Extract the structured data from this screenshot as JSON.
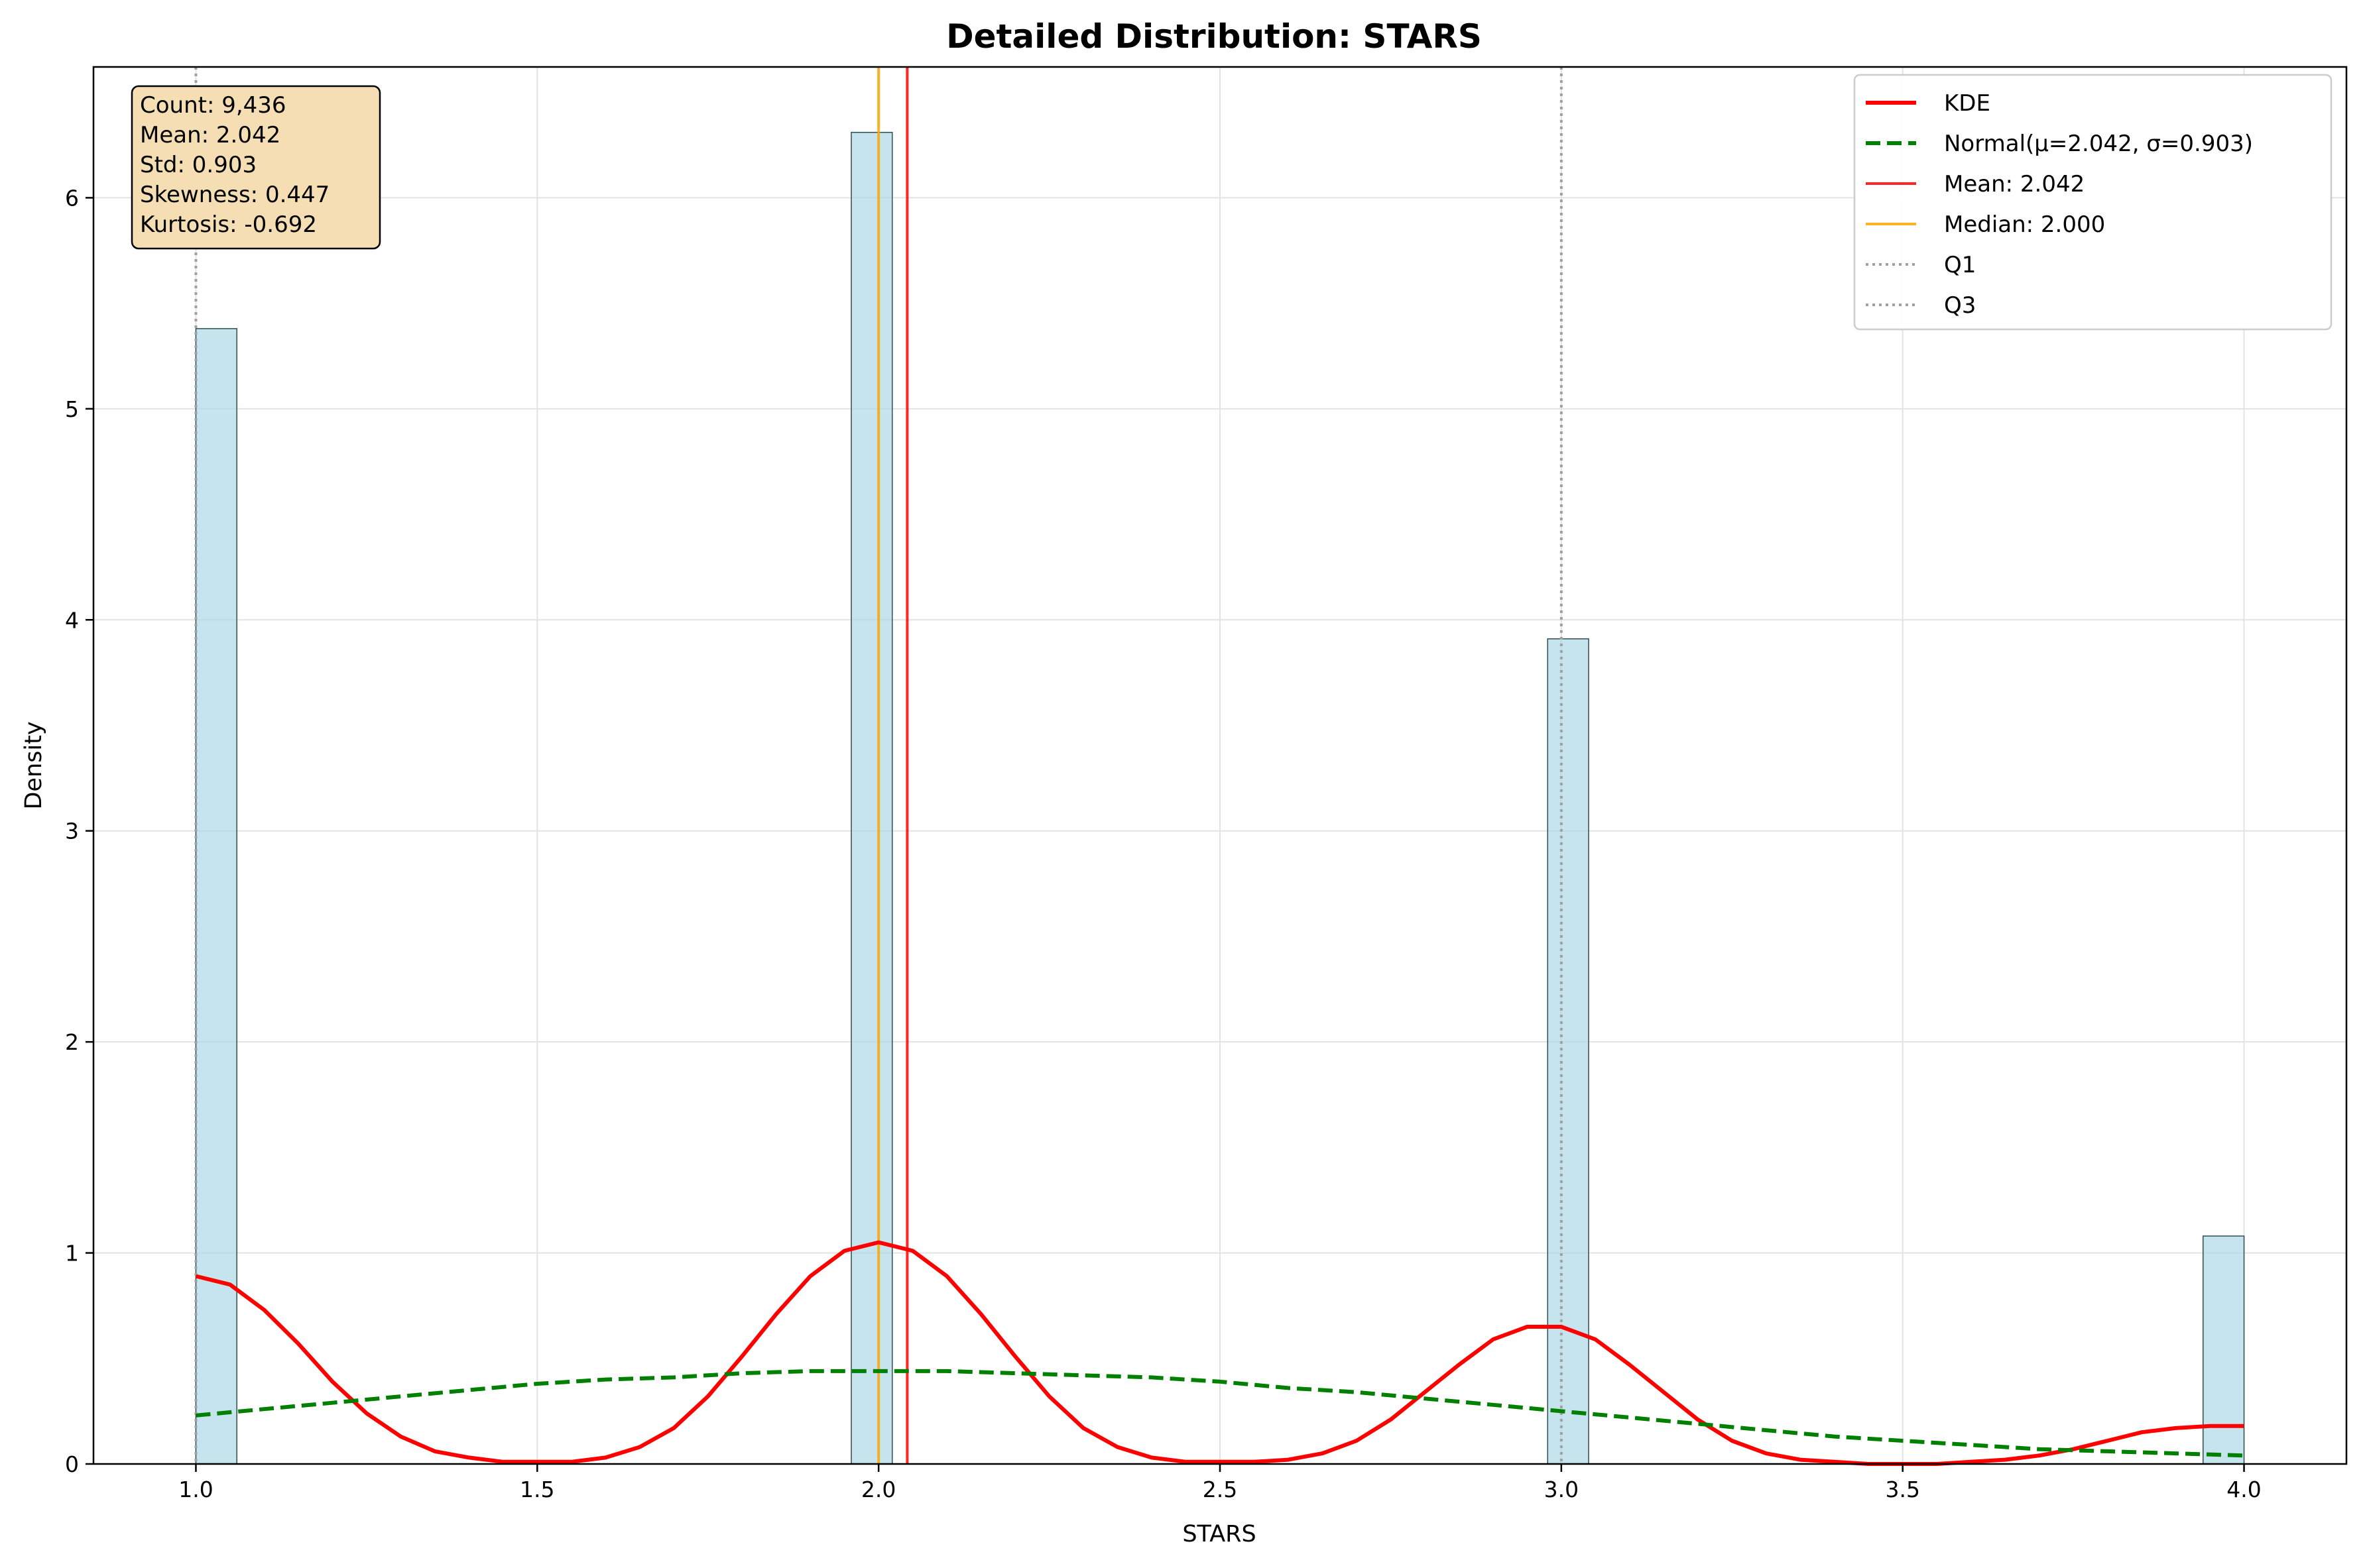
{
  "chart_data": {
    "type": "bar",
    "title": "Detailed Distribution: STARS",
    "xlabel": "STARS",
    "ylabel": "Density",
    "xlim": [
      0.85,
      4.15
    ],
    "ylim": [
      0,
      6.62
    ],
    "xticks": [
      1.0,
      1.5,
      2.0,
      2.5,
      3.0,
      3.5,
      4.0
    ],
    "xtick_labels": [
      "1.0",
      "1.5",
      "2.0",
      "2.5",
      "3.0",
      "3.5",
      "4.0"
    ],
    "yticks": [
      0,
      1,
      2,
      3,
      4,
      5,
      6
    ],
    "ytick_labels": [
      "0",
      "1",
      "2",
      "3",
      "4",
      "5",
      "6"
    ],
    "grid": true,
    "legend_position": "top-right",
    "histogram": {
      "bin_width": 0.06,
      "bins": [
        {
          "left": 1.0,
          "density": 5.38
        },
        {
          "left": 1.96,
          "density": 6.31
        },
        {
          "left": 2.98,
          "density": 3.91
        },
        {
          "left": 3.94,
          "density": 1.08
        }
      ],
      "fill_color": "#add8e6",
      "edge_color": "#2f4f4f"
    },
    "series": [
      {
        "name": "KDE",
        "kind": "line",
        "color": "#ff0000",
        "x": [
          1.0,
          1.05,
          1.1,
          1.15,
          1.2,
          1.25,
          1.3,
          1.35,
          1.4,
          1.45,
          1.5,
          1.55,
          1.6,
          1.65,
          1.7,
          1.75,
          1.8,
          1.85,
          1.9,
          1.95,
          2.0,
          2.05,
          2.1,
          2.15,
          2.2,
          2.25,
          2.3,
          2.35,
          2.4,
          2.45,
          2.5,
          2.55,
          2.6,
          2.65,
          2.7,
          2.75,
          2.8,
          2.85,
          2.9,
          2.95,
          3.0,
          3.05,
          3.1,
          3.15,
          3.2,
          3.25,
          3.3,
          3.35,
          3.4,
          3.45,
          3.5,
          3.55,
          3.6,
          3.65,
          3.7,
          3.75,
          3.8,
          3.85,
          3.9,
          3.95,
          4.0
        ],
        "y": [
          0.89,
          0.85,
          0.73,
          0.57,
          0.39,
          0.24,
          0.13,
          0.06,
          0.03,
          0.01,
          0.01,
          0.01,
          0.03,
          0.08,
          0.17,
          0.32,
          0.51,
          0.71,
          0.89,
          1.01,
          1.05,
          1.01,
          0.89,
          0.71,
          0.51,
          0.32,
          0.17,
          0.08,
          0.03,
          0.01,
          0.01,
          0.01,
          0.02,
          0.05,
          0.11,
          0.21,
          0.34,
          0.47,
          0.59,
          0.65,
          0.65,
          0.59,
          0.47,
          0.34,
          0.21,
          0.11,
          0.05,
          0.02,
          0.01,
          0.0,
          0.0,
          0.0,
          0.01,
          0.02,
          0.04,
          0.07,
          0.11,
          0.15,
          0.17,
          0.18,
          0.18
        ]
      },
      {
        "name": "Normal(μ=2.042, σ=0.903)",
        "kind": "line",
        "dashed": true,
        "color": "#008000",
        "x": [
          1.0,
          1.1,
          1.2,
          1.3,
          1.4,
          1.5,
          1.6,
          1.7,
          1.8,
          1.9,
          2.0,
          2.1,
          2.2,
          2.3,
          2.4,
          2.5,
          2.6,
          2.7,
          2.8,
          2.9,
          3.0,
          3.1,
          3.2,
          3.3,
          3.4,
          3.5,
          3.6,
          3.7,
          3.8,
          3.9,
          4.0
        ],
        "y": [
          0.23,
          0.26,
          0.29,
          0.32,
          0.35,
          0.38,
          0.4,
          0.41,
          0.43,
          0.44,
          0.44,
          0.44,
          0.43,
          0.42,
          0.41,
          0.39,
          0.36,
          0.34,
          0.31,
          0.28,
          0.25,
          0.22,
          0.19,
          0.16,
          0.13,
          0.11,
          0.09,
          0.07,
          0.06,
          0.05,
          0.04
        ]
      }
    ],
    "reference_lines": [
      {
        "name": "Mean: 2.042",
        "x": 2.042,
        "color": "#ff0000",
        "style": "solid"
      },
      {
        "name": "Median: 2.000",
        "x": 2.0,
        "color": "#ffa500",
        "style": "solid"
      },
      {
        "name": "Q1",
        "x": 1.0,
        "color": "#a0a0a0",
        "style": "dotted"
      },
      {
        "name": "Q3",
        "x": 3.0,
        "color": "#a0a0a0",
        "style": "dotted"
      }
    ],
    "legend_entries": [
      {
        "label": "KDE",
        "color": "#ff0000",
        "style": "solid-thick"
      },
      {
        "label": "Normal(μ=2.042, σ=0.903)",
        "color": "#008000",
        "style": "dashed"
      },
      {
        "label": "Mean: 2.042",
        "color": "#ff0000",
        "style": "solid"
      },
      {
        "label": "Median: 2.000",
        "color": "#ffa500",
        "style": "solid"
      },
      {
        "label": "Q1",
        "color": "#a0a0a0",
        "style": "dotted"
      },
      {
        "label": "Q3",
        "color": "#a0a0a0",
        "style": "dotted"
      }
    ],
    "stats_box": {
      "lines": [
        "Count: 9,436",
        "Mean: 2.042",
        "Std: 0.903",
        "Skewness: 0.447",
        "Kurtosis: -0.692"
      ],
      "background": "#f5deb3"
    }
  }
}
